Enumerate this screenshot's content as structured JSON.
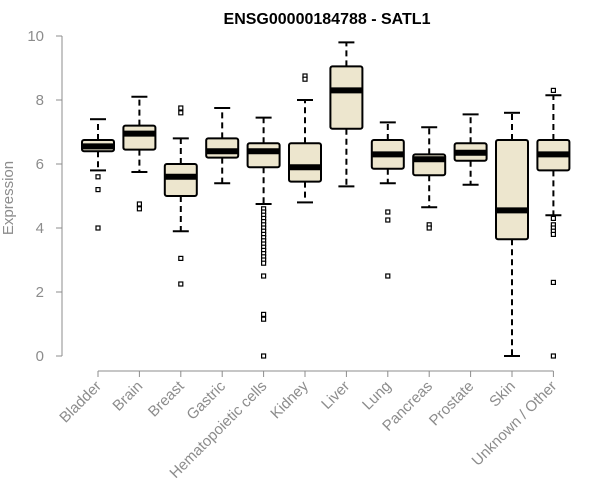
{
  "chart_data": {
    "type": "boxplot",
    "title": "ENSG00000184788 - SATL1",
    "xlabel": "",
    "ylabel": "Expression",
    "ylim": [
      0,
      10
    ],
    "yticks": [
      0,
      2,
      4,
      6,
      8,
      10
    ],
    "grid": false,
    "box_fill": "#ede6ce",
    "median_color": "#000000",
    "axis_color": "#8c8c8c",
    "categories": [
      "Bladder",
      "Brain",
      "Breast",
      "Gastric",
      "Hematopoietic cells",
      "Kidney",
      "Liver",
      "Lung",
      "Pancreas",
      "Prostate",
      "Skin",
      "Unknown / Other"
    ],
    "series": [
      {
        "name": "Bladder",
        "whisker_low": 5.8,
        "q1": 6.4,
        "median": 6.55,
        "q3": 6.75,
        "whisker_high": 7.4,
        "outliers": [
          5.6,
          5.2,
          4.0
        ]
      },
      {
        "name": "Brain",
        "whisker_low": 5.75,
        "q1": 6.45,
        "median": 6.95,
        "q3": 7.2,
        "whisker_high": 8.1,
        "outliers": [
          4.75,
          4.6
        ]
      },
      {
        "name": "Breast",
        "whisker_low": 3.9,
        "q1": 5.0,
        "median": 5.6,
        "q3": 6.0,
        "whisker_high": 6.8,
        "outliers": [
          7.75,
          7.6,
          3.05,
          2.25
        ]
      },
      {
        "name": "Gastric",
        "whisker_low": 5.4,
        "q1": 6.2,
        "median": 6.4,
        "q3": 6.8,
        "whisker_high": 7.75,
        "outliers": []
      },
      {
        "name": "Hematopoietic cells",
        "whisker_low": 4.75,
        "q1": 5.9,
        "median": 6.4,
        "q3": 6.65,
        "whisker_high": 7.45,
        "outliers": [
          4.6,
          4.5,
          4.4,
          4.3,
          4.2,
          4.1,
          4.0,
          3.9,
          3.8,
          3.7,
          3.6,
          3.5,
          3.4,
          3.3,
          3.2,
          3.1,
          3.0,
          2.9,
          2.5,
          1.3,
          1.15,
          0.0
        ]
      },
      {
        "name": "Kidney",
        "whisker_low": 4.8,
        "q1": 5.45,
        "median": 5.9,
        "q3": 6.65,
        "whisker_high": 8.0,
        "outliers": [
          8.75,
          8.65
        ]
      },
      {
        "name": "Liver",
        "whisker_low": 5.3,
        "q1": 7.1,
        "median": 8.3,
        "q3": 9.05,
        "whisker_high": 9.8,
        "outliers": []
      },
      {
        "name": "Lung",
        "whisker_low": 5.4,
        "q1": 5.85,
        "median": 6.3,
        "q3": 6.75,
        "whisker_high": 7.3,
        "outliers": [
          4.5,
          4.25,
          2.5
        ]
      },
      {
        "name": "Pancreas",
        "whisker_low": 4.65,
        "q1": 5.65,
        "median": 6.15,
        "q3": 6.3,
        "whisker_high": 7.15,
        "outliers": [
          4.1,
          4.0
        ]
      },
      {
        "name": "Prostate",
        "whisker_low": 5.35,
        "q1": 6.1,
        "median": 6.35,
        "q3": 6.65,
        "whisker_high": 7.55,
        "outliers": []
      },
      {
        "name": "Skin",
        "whisker_low": 0.0,
        "q1": 3.65,
        "median": 4.55,
        "q3": 6.75,
        "whisker_high": 7.6,
        "outliers": []
      },
      {
        "name": "Unknown / Other",
        "whisker_low": 4.4,
        "q1": 5.8,
        "median": 6.3,
        "q3": 6.75,
        "whisker_high": 8.15,
        "outliers": [
          8.3,
          4.3,
          4.1,
          4.0,
          3.9,
          3.8,
          2.3,
          0.0
        ]
      }
    ]
  }
}
